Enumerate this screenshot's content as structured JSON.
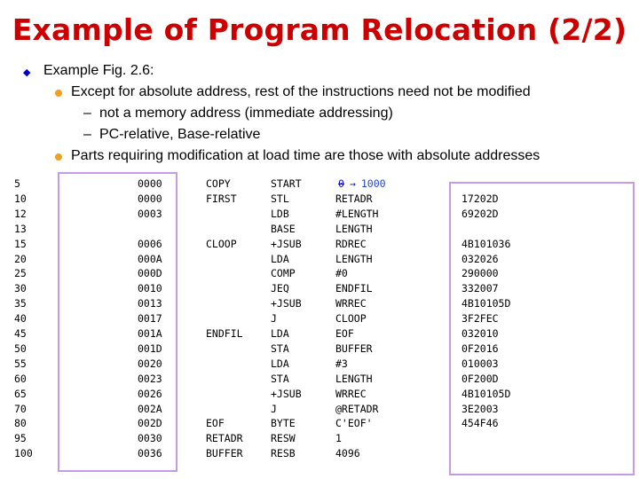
{
  "slide": {
    "title": "Example of Program Relocation (2/2)",
    "bullets": {
      "level1": "Example Fig. 2.6:",
      "level2a": "Except for absolute address, rest of the instructions need not be modified",
      "level3a": "not a memory address (immediate addressing)",
      "level3b": "PC-relative, Base-relative",
      "level2b": "Parts requiring modification at load time are those with absolute addresses"
    },
    "dash": "–",
    "start_old": "0",
    "start_arrow": "→",
    "start_new": "1000"
  },
  "listing": {
    "rows": [
      {
        "line": "5",
        "loc": "0000",
        "label": "COPY",
        "op": "START",
        "operand": "",
        "obj": ""
      },
      {
        "line": "10",
        "loc": "0000",
        "label": "FIRST",
        "op": "STL",
        "operand": "RETADR",
        "obj": "17202D"
      },
      {
        "line": "12",
        "loc": "0003",
        "label": "",
        "op": "LDB",
        "operand": "#LENGTH",
        "obj": "69202D"
      },
      {
        "line": "13",
        "loc": "",
        "label": "",
        "op": "BASE",
        "operand": "LENGTH",
        "obj": ""
      },
      {
        "line": "15",
        "loc": "0006",
        "label": "CLOOP",
        "op": "+JSUB",
        "operand": "RDREC",
        "obj": "4B101036"
      },
      {
        "line": "20",
        "loc": "000A",
        "label": "",
        "op": "LDA",
        "operand": "LENGTH",
        "obj": "032026"
      },
      {
        "line": "25",
        "loc": "000D",
        "label": "",
        "op": "COMP",
        "operand": "#0",
        "obj": "290000"
      },
      {
        "line": "30",
        "loc": "0010",
        "label": "",
        "op": "JEQ",
        "operand": "ENDFIL",
        "obj": "332007"
      },
      {
        "line": "35",
        "loc": "0013",
        "label": "",
        "op": "+JSUB",
        "operand": "WRREC",
        "obj": "4B10105D"
      },
      {
        "line": "40",
        "loc": "0017",
        "label": "",
        "op": "J",
        "operand": "CLOOP",
        "obj": "3F2FEC"
      },
      {
        "line": "45",
        "loc": "001A",
        "label": "ENDFIL",
        "op": "LDA",
        "operand": "EOF",
        "obj": "032010"
      },
      {
        "line": "50",
        "loc": "001D",
        "label": "",
        "op": "STA",
        "operand": "BUFFER",
        "obj": "0F2016"
      },
      {
        "line": "55",
        "loc": "0020",
        "label": "",
        "op": "LDA",
        "operand": "#3",
        "obj": "010003"
      },
      {
        "line": "60",
        "loc": "0023",
        "label": "",
        "op": "STA",
        "operand": "LENGTH",
        "obj": "0F200D"
      },
      {
        "line": "65",
        "loc": "0026",
        "label": "",
        "op": "+JSUB",
        "operand": "WRREC",
        "obj": "4B10105D"
      },
      {
        "line": "70",
        "loc": "002A",
        "label": "",
        "op": "J",
        "operand": "@RETADR",
        "obj": "3E2003"
      },
      {
        "line": "80",
        "loc": "002D",
        "label": "EOF",
        "op": "BYTE",
        "operand": "C'EOF'",
        "obj": "454F46"
      },
      {
        "line": "95",
        "loc": "0030",
        "label": "RETADR",
        "op": "RESW",
        "operand": "1",
        "obj": ""
      },
      {
        "line": "100",
        "loc": "0036",
        "label": "BUFFER",
        "op": "RESB",
        "operand": "4096",
        "obj": ""
      }
    ]
  },
  "colors": {
    "title": "#cc0000",
    "bullet_level1": "#0000cc",
    "bullet_level2": "#f0a020",
    "highlight_box": "#c59ae6",
    "annotation": "#2244cc"
  }
}
